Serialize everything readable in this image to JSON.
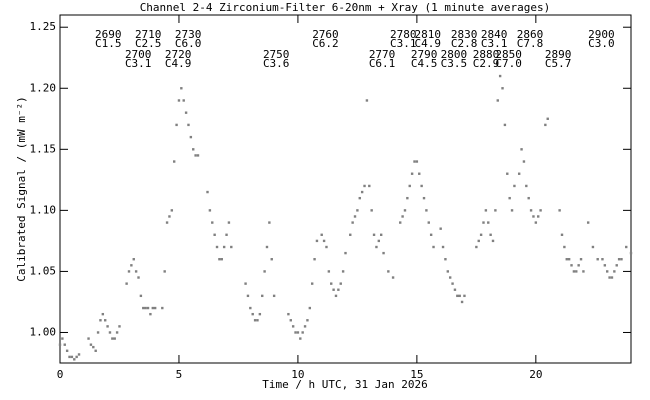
{
  "chart_data": {
    "type": "scatter",
    "title": "Channel 2-4   Zirconium-Filter   6-20nm + Xray   (1 minute averages)",
    "xlabel": "Time / h UTC, 31 Jan 2026",
    "ylabel": "Calibrated Signal / (mW m⁻²)",
    "color": "#808080",
    "xlim": [
      0,
      24
    ],
    "ylim": [
      0.975,
      1.26
    ],
    "xticks": [
      0,
      5,
      10,
      15,
      20
    ],
    "yticks": [
      {
        "value": 1,
        "label": "1.00"
      },
      1.05,
      {
        "value": 1.1,
        "label": "1.10"
      },
      1.15,
      {
        "value": 1.2,
        "label": "1.20"
      },
      1.25
    ],
    "annotation_rows": [
      [
        {
          "x": 1.47,
          "number": "2690",
          "class": "C1.5"
        },
        {
          "x": 3.15,
          "number": "2710",
          "class": "C2.5"
        },
        {
          "x": 4.83,
          "number": "2730",
          "class": "C6.0"
        },
        {
          "x": 10.6,
          "number": "2760",
          "class": "C6.2"
        },
        {
          "x": 13.87,
          "number": "2780",
          "class": "C3.1"
        },
        {
          "x": 14.9,
          "number": "2810",
          "class": "C4.9"
        },
        {
          "x": 16.43,
          "number": "2830",
          "class": "C2.8"
        },
        {
          "x": 17.69,
          "number": "2840",
          "class": "C3.1"
        },
        {
          "x": 19.2,
          "number": "2860",
          "class": "C7.8"
        },
        {
          "x": 22.2,
          "number": "2900",
          "class": "C3.0"
        }
      ],
      [
        {
          "x": 2.73,
          "number": "2700",
          "class": "C3.1"
        },
        {
          "x": 4.41,
          "number": "2720",
          "class": "C4.9"
        },
        {
          "x": 8.53,
          "number": "2750",
          "class": "C3.6"
        },
        {
          "x": 12.98,
          "number": "2770",
          "class": "C6.1"
        },
        {
          "x": 14.75,
          "number": "2790",
          "class": "C4.5"
        },
        {
          "x": 16.0,
          "number": "2800",
          "class": "C3.5"
        },
        {
          "x": 17.35,
          "number": "2880",
          "class": "C2.9"
        },
        {
          "x": 18.3,
          "number": "2850",
          "class": "C7.0"
        },
        {
          "x": 20.38,
          "number": "2890",
          "class": "C5.7"
        }
      ]
    ],
    "x": [
      0.0,
      0.1,
      0.2,
      0.3,
      0.4,
      0.5,
      0.6,
      0.7,
      0.8,
      1.2,
      1.3,
      1.4,
      1.5,
      1.6,
      1.7,
      1.8,
      1.9,
      2.0,
      2.1,
      2.2,
      2.3,
      2.4,
      2.5,
      2.8,
      2.9,
      3.0,
      3.1,
      3.2,
      3.3,
      3.4,
      3.5,
      3.6,
      3.7,
      3.8,
      3.9,
      4.0,
      4.3,
      4.4,
      4.5,
      4.6,
      4.7,
      4.8,
      4.9,
      5.0,
      5.1,
      5.2,
      5.3,
      5.4,
      5.5,
      5.6,
      5.7,
      5.8,
      6.2,
      6.3,
      6.4,
      6.5,
      6.6,
      6.7,
      6.8,
      6.9,
      7.0,
      7.1,
      7.2,
      7.8,
      7.9,
      8.0,
      8.1,
      8.2,
      8.3,
      8.4,
      8.5,
      8.6,
      8.7,
      8.8,
      8.9,
      9.0,
      9.6,
      9.7,
      9.8,
      9.9,
      10.0,
      10.1,
      10.2,
      10.3,
      10.4,
      10.5,
      10.6,
      10.7,
      10.8,
      11.0,
      11.1,
      11.2,
      11.3,
      11.4,
      11.5,
      11.6,
      11.7,
      11.8,
      11.9,
      12.0,
      12.2,
      12.3,
      12.4,
      12.5,
      12.6,
      12.7,
      12.8,
      12.9,
      13.0,
      13.1,
      13.2,
      13.3,
      13.4,
      13.5,
      13.6,
      13.8,
      14.0,
      14.3,
      14.4,
      14.5,
      14.6,
      14.7,
      14.8,
      14.9,
      15.0,
      15.1,
      15.2,
      15.3,
      15.4,
      15.5,
      15.6,
      15.7,
      16.0,
      16.1,
      16.2,
      16.3,
      16.4,
      16.5,
      16.6,
      16.7,
      16.8,
      16.9,
      17.0,
      17.5,
      17.6,
      17.7,
      17.8,
      17.9,
      18.0,
      18.1,
      18.2,
      18.3,
      18.4,
      18.5,
      18.6,
      18.7,
      18.8,
      18.9,
      19.0,
      19.1,
      19.3,
      19.4,
      19.5,
      19.6,
      19.7,
      19.8,
      19.9,
      20.0,
      20.1,
      20.2,
      20.4,
      20.5,
      21.0,
      21.1,
      21.2,
      21.3,
      21.4,
      21.5,
      21.6,
      21.7,
      21.8,
      21.9,
      22.0,
      22.2,
      22.4,
      22.6,
      22.8,
      22.9,
      23.0,
      23.1,
      23.2,
      23.3,
      23.4,
      23.5,
      23.6,
      23.8,
      24.0
    ],
    "values": [
      0.99,
      0.995,
      0.99,
      0.985,
      0.98,
      0.98,
      0.978,
      0.98,
      0.982,
      0.995,
      0.99,
      0.988,
      0.985,
      1.0,
      1.01,
      1.015,
      1.01,
      1.005,
      1.0,
      0.995,
      0.995,
      1.0,
      1.005,
      1.04,
      1.05,
      1.055,
      1.06,
      1.05,
      1.045,
      1.03,
      1.02,
      1.02,
      1.02,
      1.015,
      1.02,
      1.02,
      1.02,
      1.05,
      1.09,
      1.095,
      1.1,
      1.14,
      1.17,
      1.19,
      1.2,
      1.19,
      1.18,
      1.17,
      1.16,
      1.15,
      1.145,
      1.145,
      1.115,
      1.1,
      1.09,
      1.08,
      1.07,
      1.06,
      1.06,
      1.07,
      1.08,
      1.09,
      1.07,
      1.04,
      1.03,
      1.02,
      1.015,
      1.01,
      1.01,
      1.015,
      1.03,
      1.05,
      1.07,
      1.09,
      1.06,
      1.03,
      1.015,
      1.01,
      1.005,
      1.0,
      1.0,
      0.995,
      1.0,
      1.005,
      1.01,
      1.02,
      1.04,
      1.06,
      1.075,
      1.08,
      1.075,
      1.07,
      1.05,
      1.04,
      1.035,
      1.03,
      1.035,
      1.04,
      1.05,
      1.065,
      1.08,
      1.09,
      1.095,
      1.1,
      1.11,
      1.115,
      1.12,
      1.19,
      1.12,
      1.1,
      1.08,
      1.07,
      1.075,
      1.08,
      1.065,
      1.05,
      1.045,
      1.09,
      1.095,
      1.1,
      1.11,
      1.12,
      1.13,
      1.14,
      1.14,
      1.13,
      1.12,
      1.11,
      1.1,
      1.09,
      1.08,
      1.07,
      1.085,
      1.07,
      1.06,
      1.05,
      1.045,
      1.04,
      1.035,
      1.03,
      1.03,
      1.025,
      1.03,
      1.07,
      1.075,
      1.08,
      1.09,
      1.1,
      1.09,
      1.08,
      1.075,
      1.1,
      1.19,
      1.21,
      1.2,
      1.17,
      1.13,
      1.11,
      1.1,
      1.12,
      1.13,
      1.15,
      1.14,
      1.12,
      1.11,
      1.1,
      1.095,
      1.09,
      1.095,
      1.1,
      1.17,
      1.175,
      1.1,
      1.08,
      1.07,
      1.06,
      1.06,
      1.055,
      1.05,
      1.05,
      1.055,
      1.06,
      1.05,
      1.09,
      1.07,
      1.06,
      1.06,
      1.055,
      1.05,
      1.045,
      1.045,
      1.05,
      1.055,
      1.06,
      1.06,
      1.07,
      1.065
    ]
  }
}
